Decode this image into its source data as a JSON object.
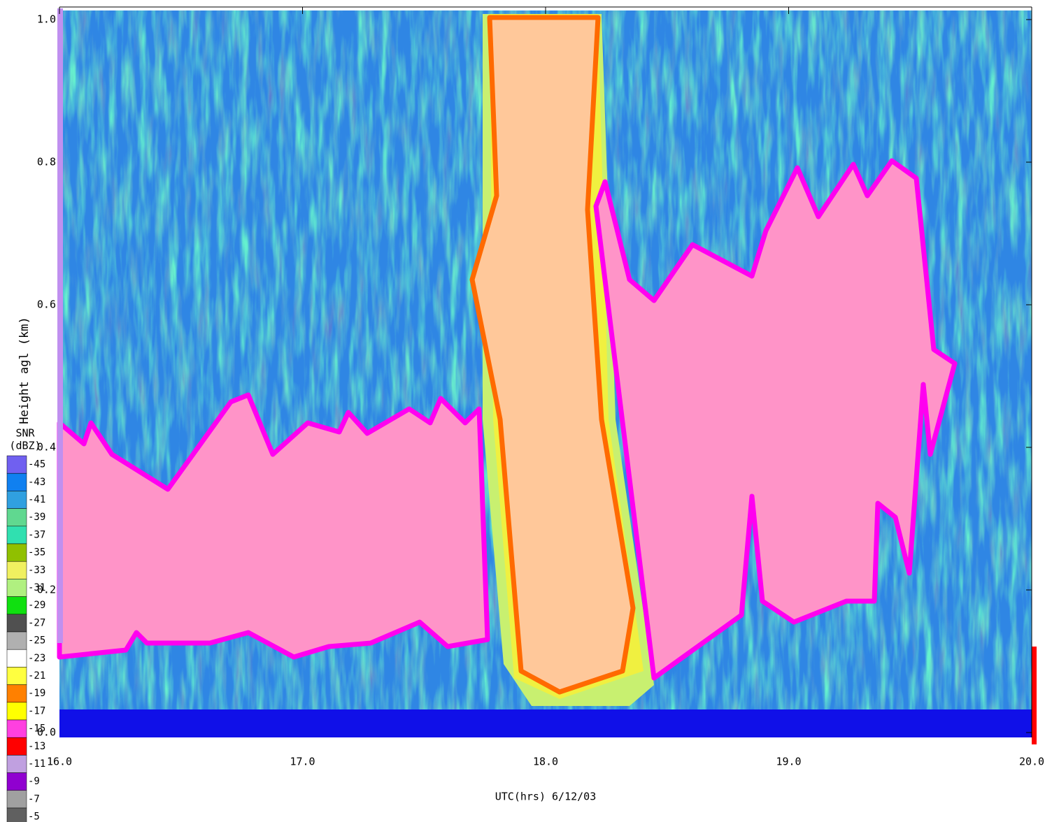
{
  "chart_data": {
    "type": "heatmap",
    "x_label": "UTC(hrs) 6/12/03",
    "y_label": "Height agl (km)",
    "xlim": [
      16,
      20
    ],
    "xticks": [
      {
        "value": 16,
        "label": "16.0"
      },
      {
        "value": 17,
        "label": "17.0"
      },
      {
        "value": 18,
        "label": "18.0"
      },
      {
        "value": 19,
        "label": "19.0"
      },
      {
        "value": 20,
        "label": "20.0"
      }
    ],
    "ylim": [
      0,
      1
    ],
    "yticks": [
      {
        "value": 0,
        "label": "0.0"
      },
      {
        "value": 0.2,
        "label": "0.2"
      },
      {
        "value": 0.4,
        "label": "0.4"
      },
      {
        "value": 0.6,
        "label": "0.6"
      },
      {
        "value": 0.8,
        "label": "0.8"
      },
      {
        "value": 1,
        "label": "1.0"
      }
    ],
    "colorbar": {
      "title": "SNR",
      "unit": "(dBZ)",
      "ticks": [
        -45,
        -43,
        -41,
        -39,
        -37,
        -35,
        -33,
        -31,
        -29,
        -27,
        -25,
        -23,
        -21,
        -19,
        -17,
        -15,
        -13,
        -11,
        -9,
        -7,
        -5
      ],
      "colors": [
        "#7060f0",
        "#1080f0",
        "#30a0e0",
        "#60d890",
        "#30e0b0",
        "#90c000",
        "#f0f060",
        "#b0f080",
        "#10e010",
        "#505050",
        "#b0b0b0",
        "#ffffff",
        "#ffff40",
        "#ff8000",
        "#ffff00",
        "#ff40e0",
        "#ff0000",
        "#c0a0e0",
        "#9000d0",
        "#a0a0a0",
        "#606060"
      ]
    }
  }
}
